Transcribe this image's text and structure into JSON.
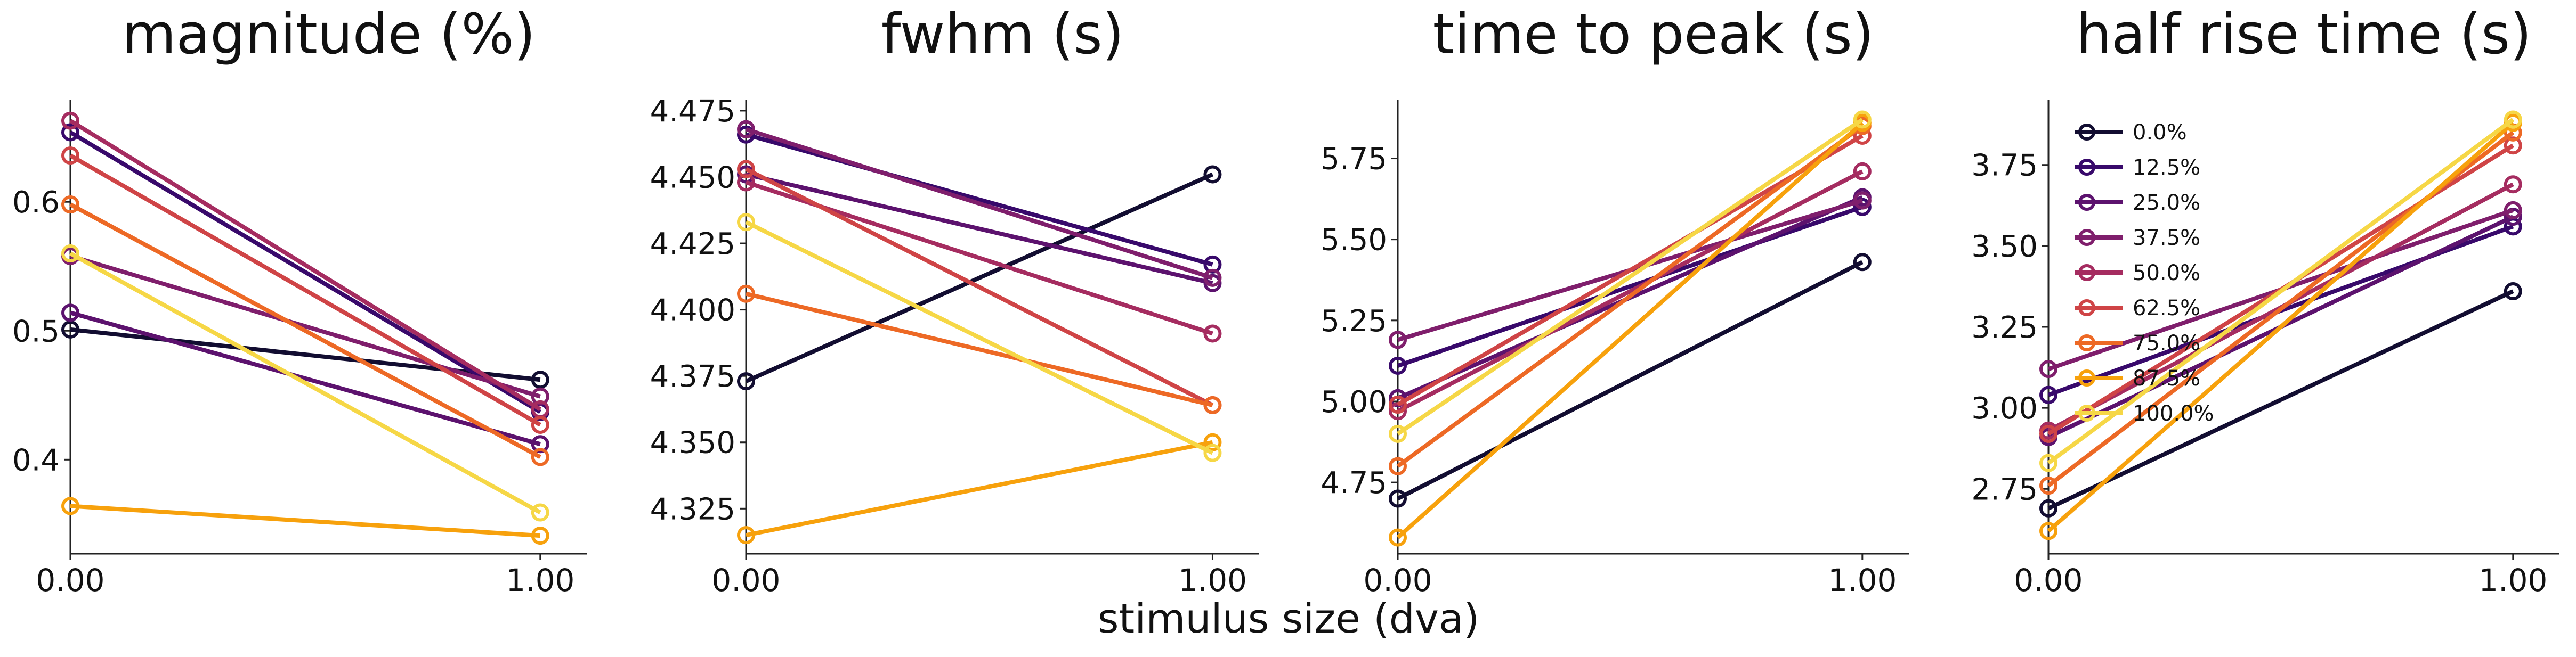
{
  "figure": {
    "xlabel": "stimulus size (dva)"
  },
  "legend": {
    "placement": "upper-left of fourth panel",
    "entries": [
      "0.0%",
      "12.5%",
      "25.0%",
      "37.5%",
      "50.0%",
      "62.5%",
      "75.0%",
      "87.5%",
      "100.0%"
    ]
  },
  "colors": {
    "0.0%": "#120d31",
    "12.5%": "#38096b",
    "25.0%": "#5c126e",
    "37.5%": "#7f1e6c",
    "50.0%": "#a52c60",
    "62.5%": "#cf4446",
    "75.0%": "#ed6925",
    "87.5%": "#f7a10c",
    "100.0%": "#f6d746"
  },
  "chart_data": [
    {
      "type": "line",
      "title": "magnitude (%)",
      "xlabel": "",
      "ylabel": "",
      "x": [
        0.0,
        1.0
      ],
      "xticks": [
        "0.00",
        "1.00"
      ],
      "xlim": [
        0.0,
        1.1
      ],
      "yticks": [
        "0.4",
        "0.5",
        "0.6"
      ],
      "ytick_values": [
        0.4,
        0.5,
        0.6
      ],
      "ylim": [
        0.327,
        0.679
      ],
      "grid": false,
      "series": [
        {
          "name": "0.0%",
          "values": [
            0.501,
            0.462
          ]
        },
        {
          "name": "12.5%",
          "values": [
            0.654,
            0.437
          ]
        },
        {
          "name": "25.0%",
          "values": [
            0.514,
            0.412
          ]
        },
        {
          "name": "37.5%",
          "values": [
            0.558,
            0.449
          ]
        },
        {
          "name": "50.0%",
          "values": [
            0.663,
            0.439
          ]
        },
        {
          "name": "62.5%",
          "values": [
            0.636,
            0.427
          ]
        },
        {
          "name": "75.0%",
          "values": [
            0.598,
            0.402
          ]
        },
        {
          "name": "87.5%",
          "values": [
            0.364,
            0.341
          ]
        },
        {
          "name": "100.0%",
          "values": [
            0.56,
            0.359
          ]
        }
      ]
    },
    {
      "type": "line",
      "title": "fwhm (s)",
      "xlabel": "",
      "ylabel": "",
      "x": [
        0.0,
        1.0
      ],
      "xticks": [
        "0.00",
        "1.00"
      ],
      "xlim": [
        0.0,
        1.1
      ],
      "yticks": [
        "4.325",
        "4.350",
        "4.375",
        "4.400",
        "4.425",
        "4.450",
        "4.475"
      ],
      "ytick_values": [
        4.325,
        4.35,
        4.375,
        4.4,
        4.425,
        4.45,
        4.475
      ],
      "ylim": [
        4.308,
        4.479
      ],
      "grid": false,
      "series": [
        {
          "name": "0.0%",
          "values": [
            4.373,
            4.451
          ]
        },
        {
          "name": "12.5%",
          "values": [
            4.466,
            4.417
          ]
        },
        {
          "name": "25.0%",
          "values": [
            4.451,
            4.41
          ]
        },
        {
          "name": "37.5%",
          "values": [
            4.468,
            4.412
          ]
        },
        {
          "name": "50.0%",
          "values": [
            4.448,
            4.391
          ]
        },
        {
          "name": "62.5%",
          "values": [
            4.453,
            4.364
          ]
        },
        {
          "name": "75.0%",
          "values": [
            4.406,
            4.364
          ]
        },
        {
          "name": "87.5%",
          "values": [
            4.315,
            4.35
          ]
        },
        {
          "name": "100.0%",
          "values": [
            4.433,
            4.346
          ]
        }
      ]
    },
    {
      "type": "line",
      "title": "time to peak (s)",
      "xlabel": "",
      "ylabel": "",
      "x": [
        0.0,
        1.0
      ],
      "xticks": [
        "0.00",
        "1.00"
      ],
      "xlim": [
        0.0,
        1.1
      ],
      "yticks": [
        "4.75",
        "5.00",
        "5.25",
        "5.50",
        "5.75"
      ],
      "ytick_values": [
        4.75,
        5.0,
        5.25,
        5.5,
        5.75
      ],
      "ylim": [
        4.53,
        5.93
      ],
      "grid": false,
      "series": [
        {
          "name": "0.0%",
          "values": [
            4.7,
            5.43
          ]
        },
        {
          "name": "12.5%",
          "values": [
            5.11,
            5.6
          ]
        },
        {
          "name": "25.0%",
          "values": [
            5.01,
            5.63
          ]
        },
        {
          "name": "37.5%",
          "values": [
            5.19,
            5.62
          ]
        },
        {
          "name": "50.0%",
          "values": [
            4.97,
            5.71
          ]
        },
        {
          "name": "62.5%",
          "values": [
            4.99,
            5.82
          ]
        },
        {
          "name": "75.0%",
          "values": [
            4.8,
            5.85
          ]
        },
        {
          "name": "87.5%",
          "values": [
            4.58,
            5.86
          ]
        },
        {
          "name": "100.0%",
          "values": [
            4.9,
            5.87
          ]
        }
      ]
    },
    {
      "type": "line",
      "title": "half rise time (s)",
      "xlabel": "",
      "ylabel": "",
      "x": [
        0.0,
        1.0
      ],
      "xticks": [
        "0.00",
        "1.00"
      ],
      "xlim": [
        0.0,
        1.1
      ],
      "yticks": [
        "2.75",
        "3.00",
        "3.25",
        "3.50",
        "3.75"
      ],
      "ytick_values": [
        2.75,
        3.0,
        3.25,
        3.5,
        3.75
      ],
      "ylim": [
        2.55,
        3.95
      ],
      "grid": false,
      "series": [
        {
          "name": "0.0%",
          "values": [
            2.69,
            3.36
          ]
        },
        {
          "name": "12.5%",
          "values": [
            3.04,
            3.56
          ]
        },
        {
          "name": "25.0%",
          "values": [
            2.91,
            3.59
          ]
        },
        {
          "name": "37.5%",
          "values": [
            3.12,
            3.61
          ]
        },
        {
          "name": "50.0%",
          "values": [
            2.93,
            3.69
          ]
        },
        {
          "name": "62.5%",
          "values": [
            2.92,
            3.81
          ]
        },
        {
          "name": "75.0%",
          "values": [
            2.76,
            3.85
          ]
        },
        {
          "name": "87.5%",
          "values": [
            2.62,
            3.88
          ]
        },
        {
          "name": "100.0%",
          "values": [
            2.83,
            3.89
          ]
        }
      ]
    }
  ]
}
